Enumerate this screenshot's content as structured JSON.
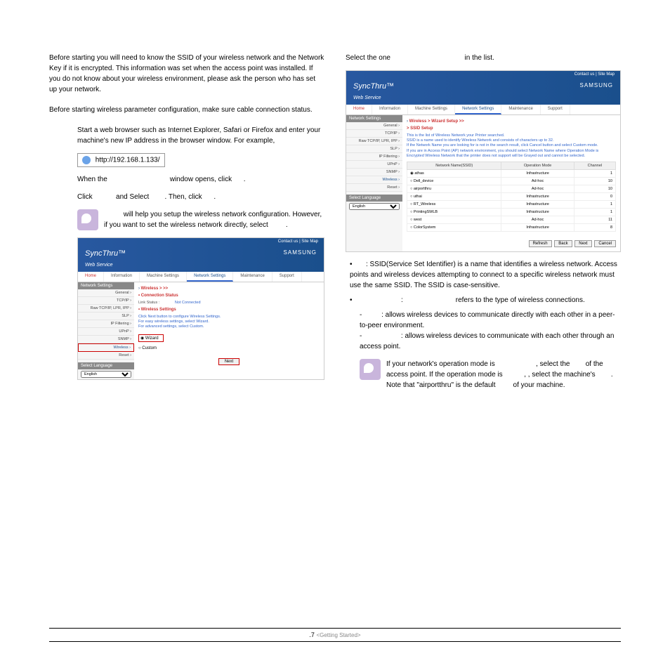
{
  "left": {
    "p1": "Before starting you will need to know the SSID of your wireless network and the Network Key if it is encrypted. This information was set when the access point was installed. If you do not know about your wireless environment, please ask the person who has set up your network.",
    "p2": "Before starting wireless parameter configuration, make sure cable connection status.",
    "step1": "Start a web browser such as Internet Explorer, Safari or Firefox and enter your machine's new IP address in the browser window. For example,",
    "url": "http://192.168.1.133/",
    "step2a": "When the",
    "step2b": "window opens, click",
    "step3a": "Click",
    "step3b": "and Select",
    "step3c": ". Then, click",
    "note1": "will help you setup the wireless network configuration. However, if you want to set the wireless network directly, select"
  },
  "right": {
    "head1": "Select the one",
    "head2": "in the list.",
    "b1": ": SSID(Service Set Identifier) is a name that identifies a wireless network. Access points and wireless devices attempting to connect to a specific wireless network must use the same SSID. The SSID is case-sensitive.",
    "b2a": ":",
    "b2b": "refers to the type of wireless connections.",
    "s1": ": allows wireless devices to communicate directly with each other in a peer-to-peer environment.",
    "s2": ": allows wireless devices to communicate with each other through an access point.",
    "note2a": "If your network's operation mode is",
    "note2b": ", select the",
    "note2c": "of the access point. If the operation mode is",
    "note2d": ", select the machine's",
    "note2e": ". Note that \"airportthru\" is the default",
    "note2f": "of your machine."
  },
  "ss1": {
    "topbar": "Contact us  |  Site Map",
    "logo": "SyncThru",
    "logosub": "Web Service",
    "samsung": "SAMSUNG",
    "tabs": [
      "Home",
      "Information",
      "Machine Settings",
      "Network Settings",
      "Maintenance",
      "Support"
    ],
    "sideHeader": "Network Settings",
    "sideItems": [
      "General ›",
      "TCP/IP ›",
      "Raw TCP/IP, LPR, IPP ›",
      "SLP ›",
      "IP Filtering ›",
      "UPnP ›",
      "SNMP ›",
      "Wireless ›",
      "Reset ›"
    ],
    "selLang": "Select Language",
    "lang": "English",
    "crumb": "Wireless > >>",
    "sect1": "• Connection Status",
    "link1": "Link Status :",
    "link1v": "Not Connected",
    "sect2": "• Wireless Settings",
    "help": "Click Next button to configure Wireless Settings.\nFor easy wireless settings, select Wizard.\nFor advanced settings, select Custom.",
    "r1": "Wizard",
    "r2": "Custom",
    "btn": "Next"
  },
  "ss2": {
    "crumb1": "Wireless >",
    "crumb2": "Wizard Setup >>",
    "sect": "> SSID Setup",
    "desc": "This is the list of Wireless Network your Printer searched.\nSSID is a name used to identify Wireless Network and consists of characters up to 32.\nIf the Network Name you are looking for is not in the search result, click Cancel button and select Custom mode.\nIf you are in Access Point (AP) network environment, you should select Network Name where Operation Mode is\nEncrypted Wireless Network that the printer does not support will be Grayed out and cannot be selected.",
    "th": [
      "Network Name(SSID)",
      "Operation Mode",
      "Channel"
    ],
    "rows": [
      [
        "athas",
        "Infrastructure",
        "1"
      ],
      [
        "Dell_device",
        "Ad-hoc",
        "10"
      ],
      [
        "airportthru",
        "Ad-hoc",
        "10"
      ],
      [
        "uthai",
        "Infrastructure",
        "0"
      ],
      [
        "RT_Wireless",
        "Infrastructure",
        "1"
      ],
      [
        "PrintingSWLB",
        "Infrastructure",
        "1"
      ],
      [
        "west",
        "Ad-hoc",
        "11"
      ],
      [
        "ColorSystem",
        "Infrastructure",
        "8"
      ]
    ],
    "btns": [
      "Refresh",
      "Back",
      "Next",
      "Cancel"
    ]
  },
  "footer": {
    "num": ".7",
    "txt": "<Getting Started>"
  }
}
